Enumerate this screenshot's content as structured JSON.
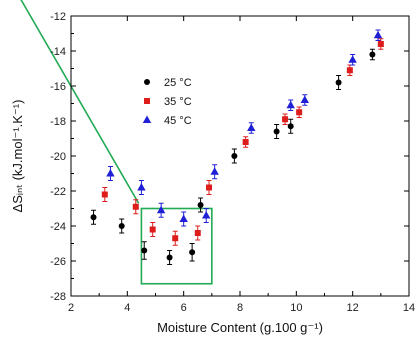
{
  "chart_data": {
    "type": "scatter",
    "xlabel": "Moisture Content (g.100 g⁻¹)",
    "ylabel": "ΔSᵢₙₜ (kJ.mol⁻¹.K⁻¹)",
    "xlim": [
      2,
      14
    ],
    "ylim": [
      -28,
      -12
    ],
    "x_ticks": [
      "2",
      "4",
      "6",
      "8",
      "10",
      "12",
      "14"
    ],
    "y_ticks": [
      "-12",
      "-14",
      "-16",
      "-18",
      "-20",
      "-22",
      "-24",
      "-26",
      "-28"
    ],
    "legend_position": "upper-left",
    "series": [
      {
        "name": "25 °C",
        "marker": "circle",
        "color": "#000000",
        "points": [
          {
            "x": 2.8,
            "y": -23.5,
            "err": 0.4
          },
          {
            "x": 3.8,
            "y": -24.0,
            "err": 0.4
          },
          {
            "x": 4.6,
            "y": -25.4,
            "err": 0.5
          },
          {
            "x": 5.5,
            "y": -25.8,
            "err": 0.4
          },
          {
            "x": 6.3,
            "y": -25.5,
            "err": 0.5
          },
          {
            "x": 6.6,
            "y": -22.8,
            "err": 0.4
          },
          {
            "x": 7.8,
            "y": -20.0,
            "err": 0.4
          },
          {
            "x": 9.3,
            "y": -18.6,
            "err": 0.4
          },
          {
            "x": 9.8,
            "y": -18.3,
            "err": 0.4
          },
          {
            "x": 11.5,
            "y": -15.8,
            "err": 0.4
          },
          {
            "x": 12.7,
            "y": -14.2,
            "err": 0.3
          }
        ]
      },
      {
        "name": "35 °C",
        "marker": "square",
        "color": "#dd1c1c",
        "points": [
          {
            "x": 3.2,
            "y": -22.2,
            "err": 0.4
          },
          {
            "x": 4.3,
            "y": -22.9,
            "err": 0.4
          },
          {
            "x": 4.9,
            "y": -24.2,
            "err": 0.4
          },
          {
            "x": 5.7,
            "y": -24.7,
            "err": 0.4
          },
          {
            "x": 6.5,
            "y": -24.4,
            "err": 0.4
          },
          {
            "x": 6.9,
            "y": -21.8,
            "err": 0.4
          },
          {
            "x": 8.2,
            "y": -19.2,
            "err": 0.3
          },
          {
            "x": 9.6,
            "y": -17.9,
            "err": 0.3
          },
          {
            "x": 10.1,
            "y": -17.5,
            "err": 0.3
          },
          {
            "x": 11.9,
            "y": -15.1,
            "err": 0.3
          },
          {
            "x": 13.0,
            "y": -13.6,
            "err": 0.3
          }
        ]
      },
      {
        "name": "45 °C",
        "marker": "triangle",
        "color": "#1f1fd6",
        "points": [
          {
            "x": 3.4,
            "y": -21.0,
            "err": 0.4
          },
          {
            "x": 4.5,
            "y": -21.8,
            "err": 0.4
          },
          {
            "x": 5.2,
            "y": -23.1,
            "err": 0.4
          },
          {
            "x": 6.0,
            "y": -23.6,
            "err": 0.4
          },
          {
            "x": 6.8,
            "y": -23.4,
            "err": 0.4
          },
          {
            "x": 7.1,
            "y": -20.9,
            "err": 0.4
          },
          {
            "x": 8.4,
            "y": -18.4,
            "err": 0.3
          },
          {
            "x": 9.8,
            "y": -17.1,
            "err": 0.3
          },
          {
            "x": 10.3,
            "y": -16.8,
            "err": 0.3
          },
          {
            "x": 12.0,
            "y": -14.5,
            "err": 0.3
          },
          {
            "x": 12.9,
            "y": -13.1,
            "err": 0.3
          }
        ]
      }
    ],
    "annotations": {
      "line_color": "#22aa55",
      "trend_line": {
        "x1": 2.0,
        "y1": -14.2,
        "x2": 4.4,
        "y2": -22.7
      },
      "box": {
        "x_min": 4.5,
        "x_max": 7.0,
        "y_min": -27.3,
        "y_max": -23.0
      }
    }
  }
}
